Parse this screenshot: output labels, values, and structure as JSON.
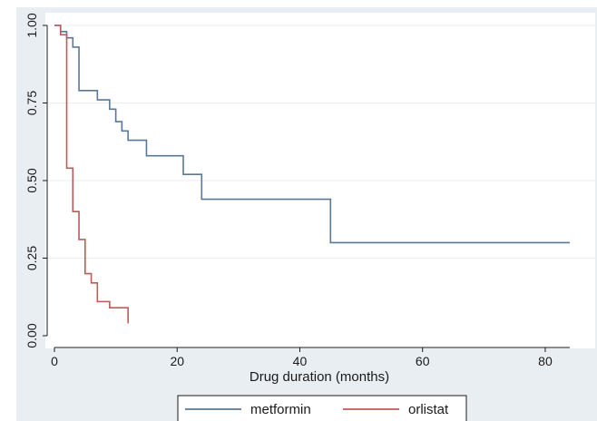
{
  "chart_data": {
    "type": "line",
    "title": "",
    "xlabel": "Drug duration (months)",
    "ylabel": "",
    "xlim": [
      0,
      84
    ],
    "ylim": [
      0,
      1
    ],
    "xticks": [
      0,
      20,
      40,
      60,
      80
    ],
    "xtick_labels": [
      "0",
      "20",
      "40",
      "60",
      "80"
    ],
    "yticks": [
      0,
      0.25,
      0.5,
      0.75,
      1
    ],
    "ytick_labels": [
      "0.00",
      "0.25",
      "0.50",
      "0.75",
      "1.00"
    ],
    "grid": true,
    "legend_position": "bottom",
    "step": true,
    "series": [
      {
        "name": "metformin",
        "color": "#5a7896",
        "x": [
          0,
          1,
          2,
          3,
          4,
          7,
          9,
          10,
          11,
          12,
          15,
          21,
          24,
          45,
          84
        ],
        "y": [
          1.0,
          0.98,
          0.96,
          0.93,
          0.79,
          0.76,
          0.73,
          0.69,
          0.66,
          0.63,
          0.58,
          0.52,
          0.44,
          0.3,
          0.3
        ]
      },
      {
        "name": "orlistat",
        "color": "#c05a5a",
        "x": [
          0,
          1,
          2,
          3,
          4,
          5,
          6,
          7,
          9,
          12
        ],
        "y": [
          1.0,
          0.97,
          0.54,
          0.4,
          0.31,
          0.2,
          0.17,
          0.11,
          0.09,
          0.04
        ]
      }
    ]
  }
}
